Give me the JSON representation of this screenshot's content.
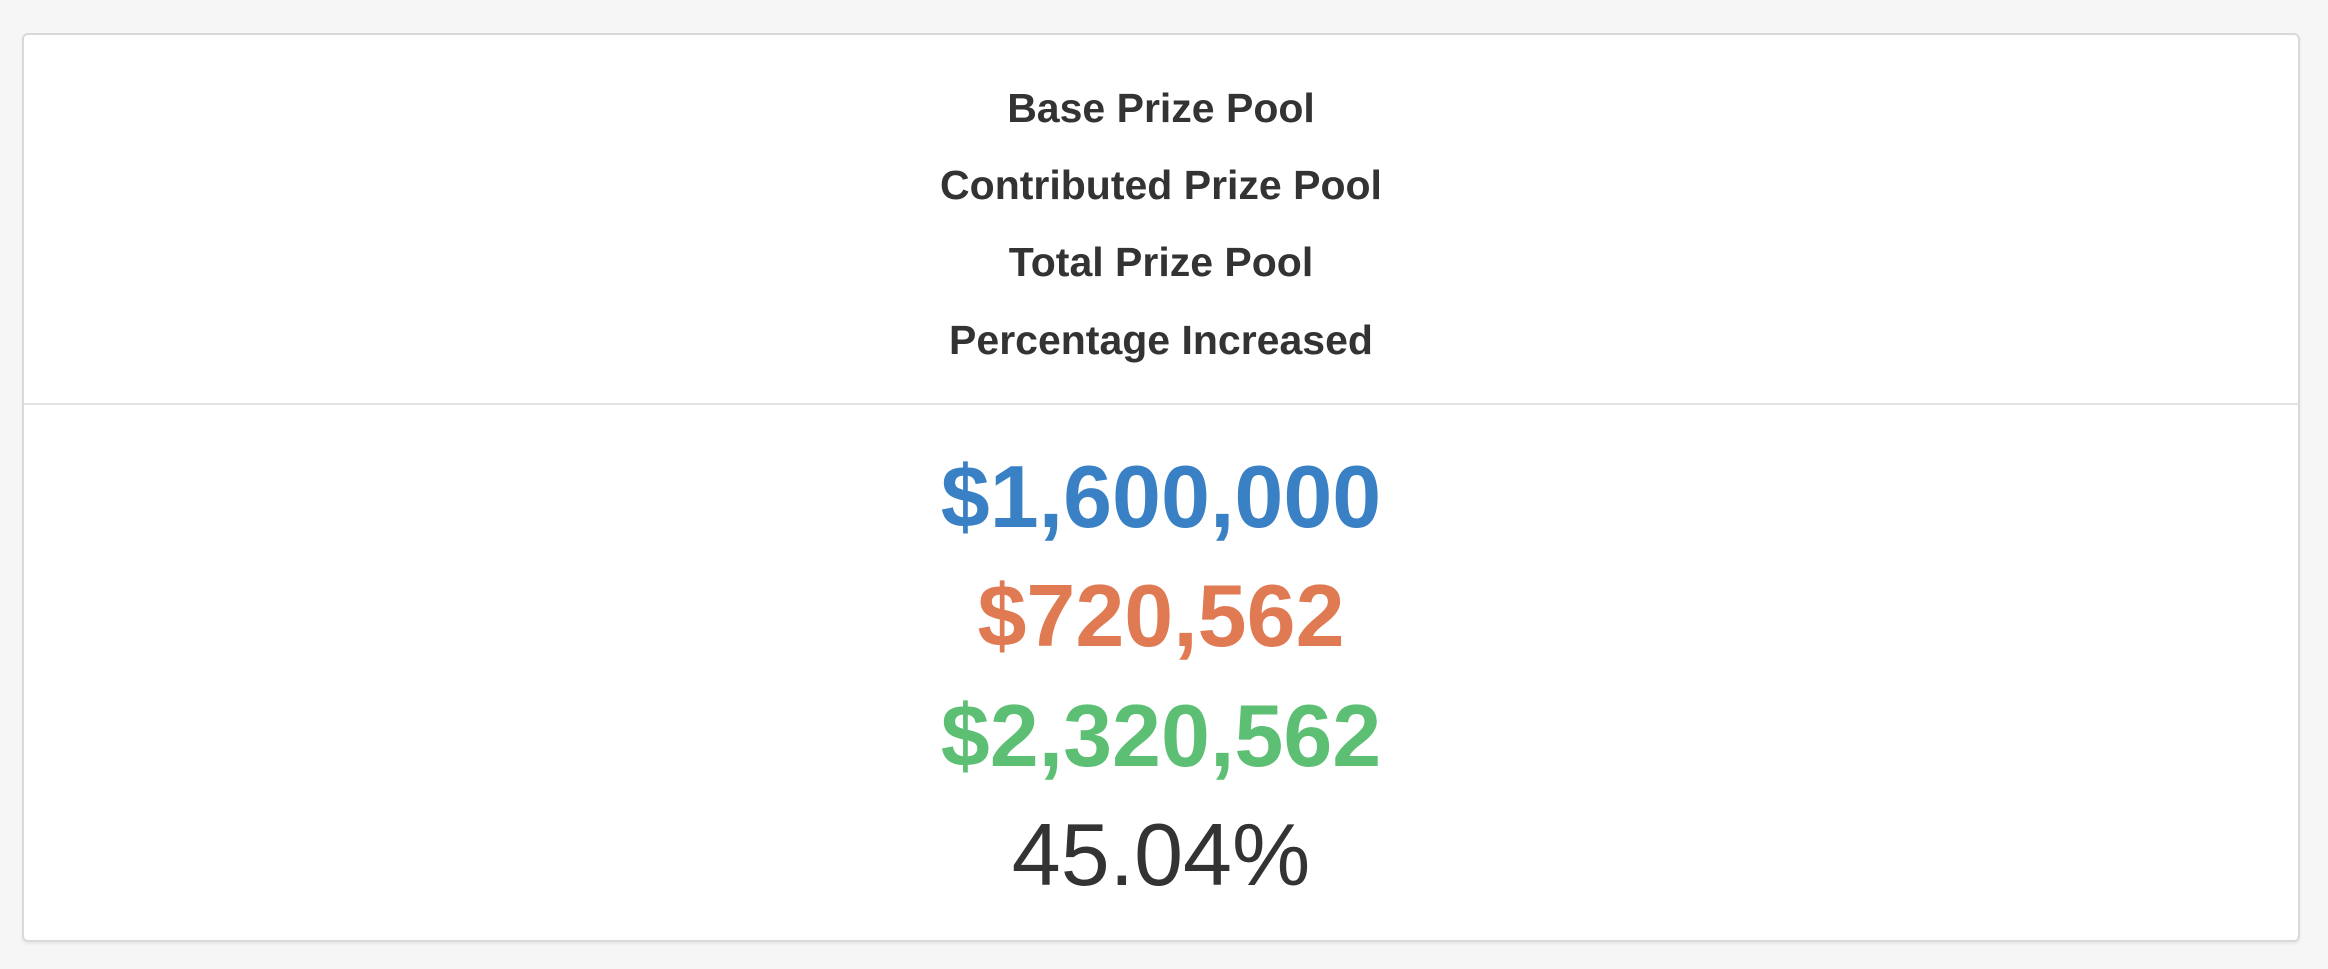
{
  "labels": {
    "base": "Base Prize Pool",
    "contributed": "Contributed Prize Pool",
    "total": "Total Prize Pool",
    "percentage": "Percentage Increased"
  },
  "values": {
    "base": "$1,600,000",
    "contributed": "$720,562",
    "total": "$2,320,562",
    "percentage": "45.04%"
  },
  "colors": {
    "base": "#3a80c4",
    "contributed": "#e07a52",
    "total": "#5cbf73",
    "percentage": "#333333"
  }
}
